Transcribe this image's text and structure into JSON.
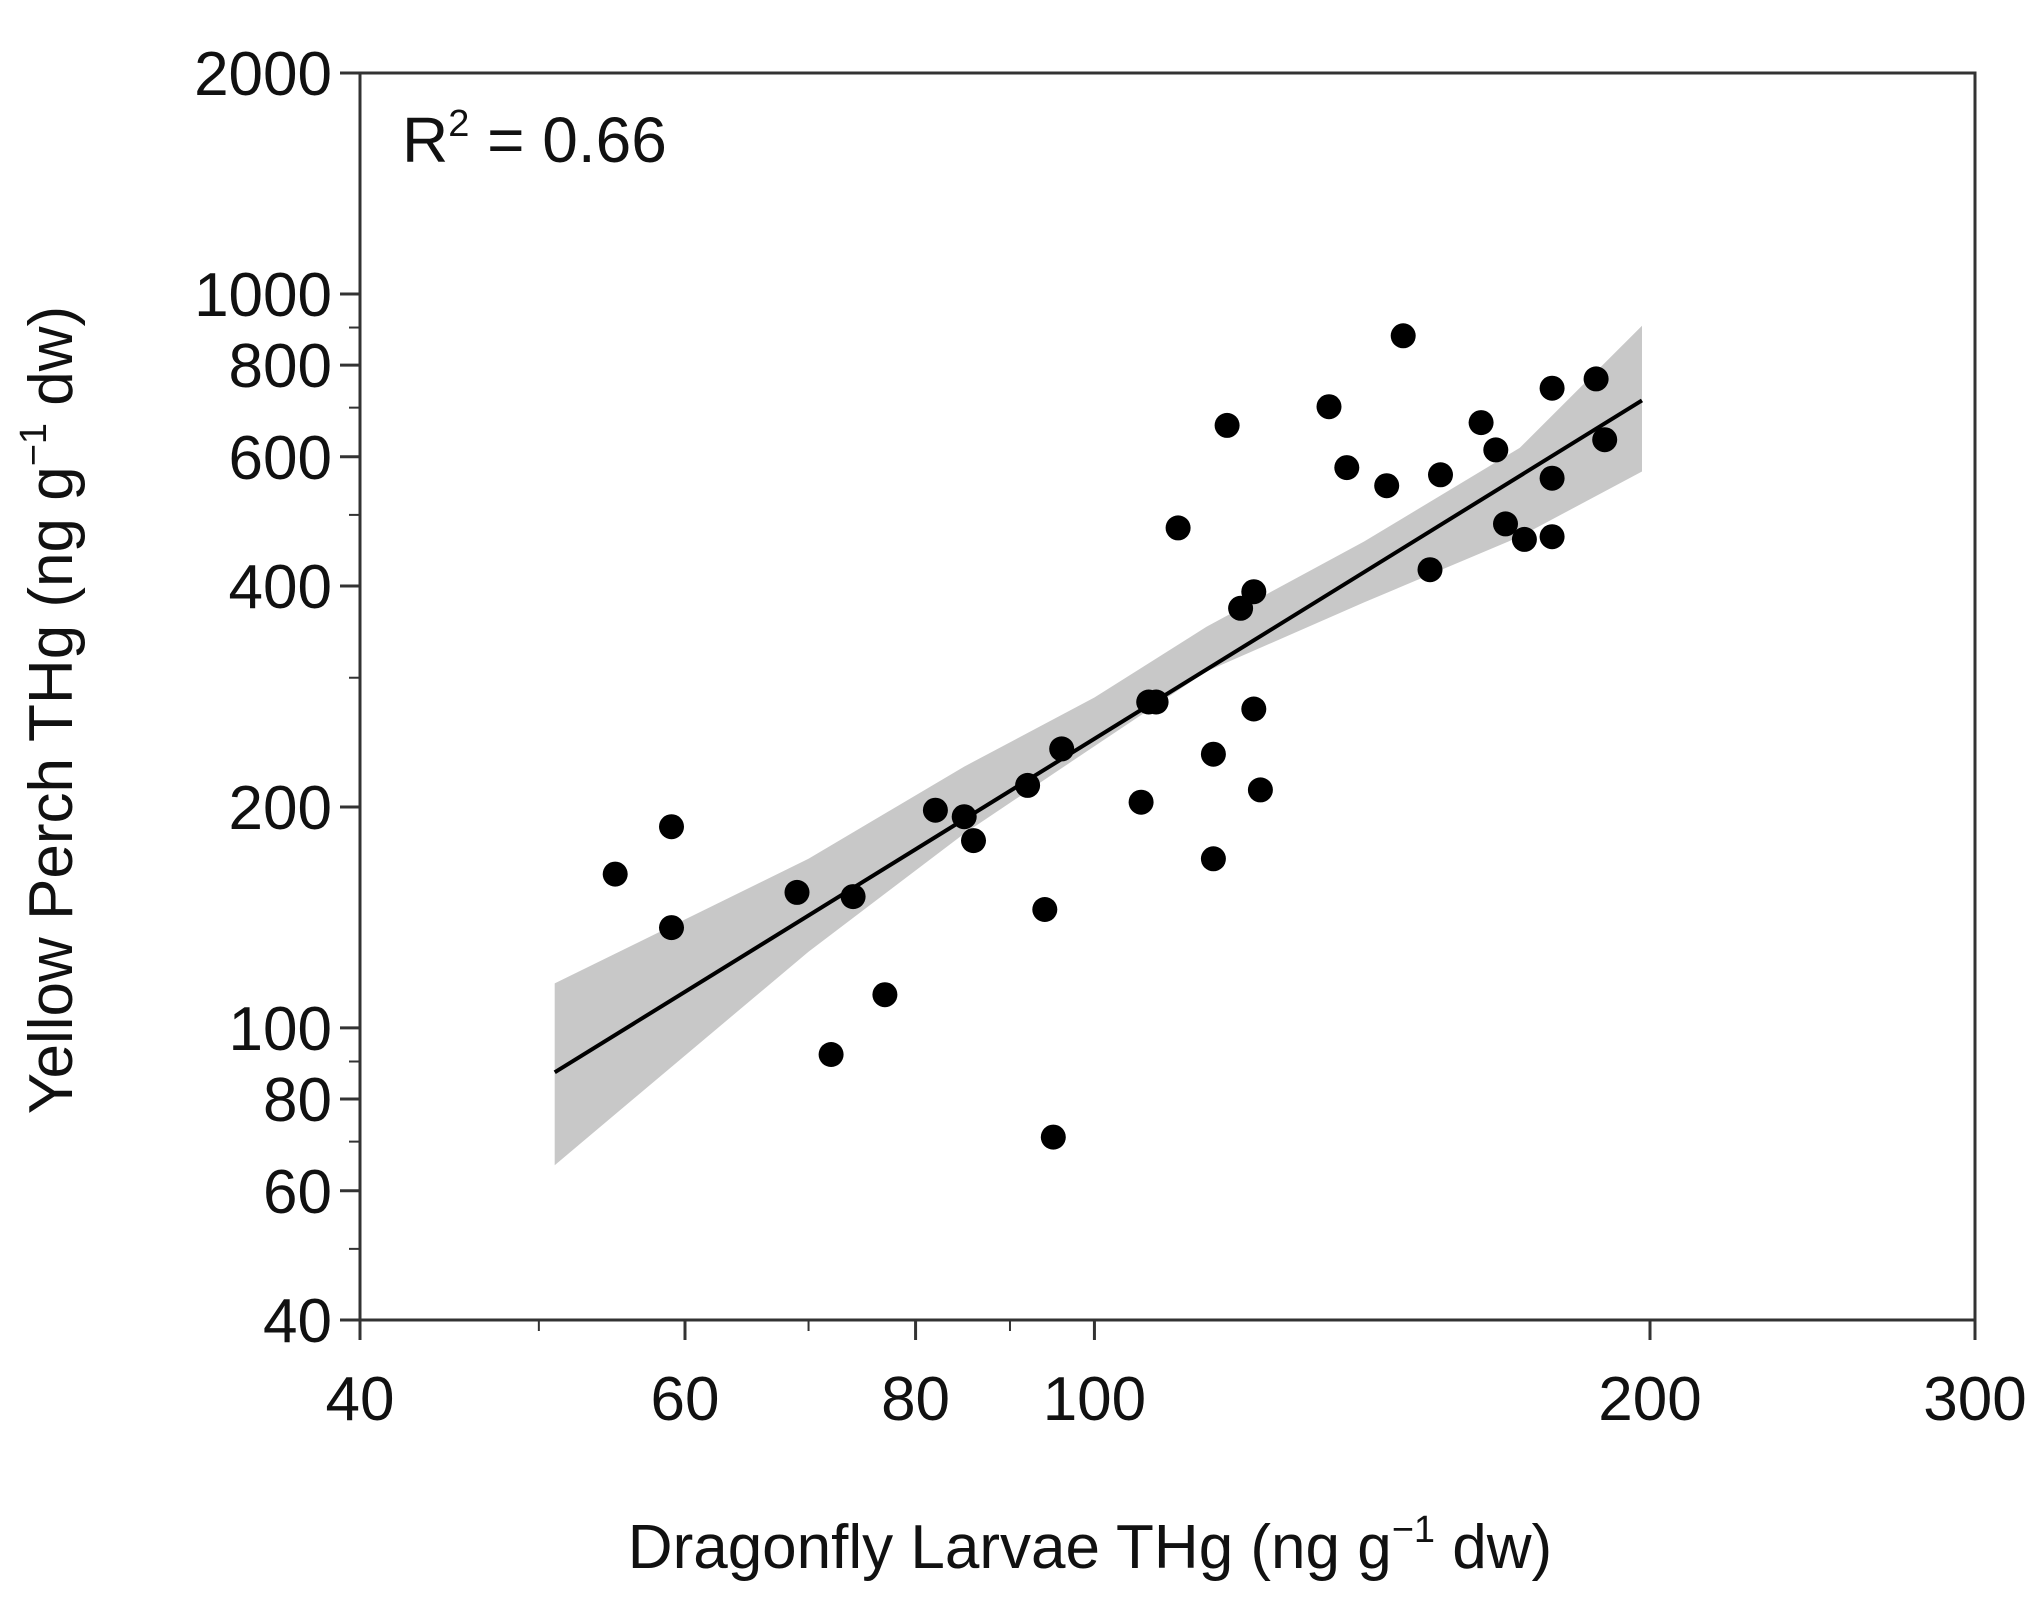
{
  "chart_data": {
    "type": "scatter",
    "x_scale": "log",
    "y_scale": "log",
    "xlabel": {
      "main": "Dragonfly Larvae THg (ng g",
      "sup": "−1",
      "tail": " dw)"
    },
    "ylabel": {
      "main": "Yellow Perch THg (ng g",
      "sup": "−1",
      "tail": " dw)"
    },
    "annotation": {
      "main": "R",
      "sup": "2",
      "tail": " = 0.66"
    },
    "xlim": [
      40,
      300
    ],
    "ylim": [
      40,
      2000
    ],
    "x_ticks": [
      {
        "value": 40,
        "label": "40"
      },
      {
        "value": 60,
        "label": "60"
      },
      {
        "value": 80,
        "label": "80"
      },
      {
        "value": 100,
        "label": "100"
      },
      {
        "value": 200,
        "label": "200"
      },
      {
        "value": 300,
        "label": "300"
      }
    ],
    "x_minor_ticks": [
      50,
      70,
      90
    ],
    "y_ticks": [
      {
        "value": 40,
        "label": "40"
      },
      {
        "value": 60,
        "label": "60"
      },
      {
        "value": 80,
        "label": "80"
      },
      {
        "value": 100,
        "label": "100"
      },
      {
        "value": 200,
        "label": "200"
      },
      {
        "value": 400,
        "label": "400"
      },
      {
        "value": 600,
        "label": "600"
      },
      {
        "value": 800,
        "label": "800"
      },
      {
        "value": 1000,
        "label": "1000"
      },
      {
        "value": 2000,
        "label": "2000"
      }
    ],
    "y_minor_ticks": [
      50,
      70,
      90,
      300,
      500,
      700,
      900
    ],
    "fit_line": {
      "x": [
        51,
        198
      ],
      "y": [
        87,
        716
      ]
    },
    "confidence_band": {
      "x": [
        51,
        70,
        85,
        100,
        115,
        140,
        170,
        198
      ],
      "upper": [
        115,
        170,
        227,
        282,
        352,
        460,
        617,
        905
      ],
      "lower": [
        65,
        127,
        184,
        242,
        306,
        380,
        467,
        573
      ]
    },
    "points": [
      {
        "x": 55,
        "y": 162
      },
      {
        "x": 59,
        "y": 188
      },
      {
        "x": 59,
        "y": 137
      },
      {
        "x": 69,
        "y": 153
      },
      {
        "x": 74,
        "y": 151
      },
      {
        "x": 72,
        "y": 92
      },
      {
        "x": 77,
        "y": 111
      },
      {
        "x": 82,
        "y": 198
      },
      {
        "x": 85,
        "y": 194
      },
      {
        "x": 86,
        "y": 180
      },
      {
        "x": 92,
        "y": 214
      },
      {
        "x": 96,
        "y": 240
      },
      {
        "x": 94,
        "y": 145
      },
      {
        "x": 95,
        "y": 71
      },
      {
        "x": 106,
        "y": 203
      },
      {
        "x": 107,
        "y": 278
      },
      {
        "x": 108,
        "y": 278
      },
      {
        "x": 111,
        "y": 480
      },
      {
        "x": 116,
        "y": 236
      },
      {
        "x": 116,
        "y": 170
      },
      {
        "x": 118,
        "y": 662
      },
      {
        "x": 120,
        "y": 373
      },
      {
        "x": 122,
        "y": 393
      },
      {
        "x": 123,
        "y": 211
      },
      {
        "x": 122,
        "y": 272
      },
      {
        "x": 134,
        "y": 702
      },
      {
        "x": 137,
        "y": 580
      },
      {
        "x": 144,
        "y": 548
      },
      {
        "x": 147,
        "y": 877
      },
      {
        "x": 152,
        "y": 421
      },
      {
        "x": 154,
        "y": 567
      },
      {
        "x": 162,
        "y": 668
      },
      {
        "x": 165,
        "y": 613
      },
      {
        "x": 167,
        "y": 486
      },
      {
        "x": 171,
        "y": 463
      },
      {
        "x": 177,
        "y": 744
      },
      {
        "x": 177,
        "y": 561
      },
      {
        "x": 177,
        "y": 467
      },
      {
        "x": 187,
        "y": 766
      },
      {
        "x": 189,
        "y": 633
      }
    ]
  },
  "colors": {
    "axis": "#333333",
    "marker": "#000000",
    "line": "#000000",
    "band": "#c8c8c8"
  }
}
